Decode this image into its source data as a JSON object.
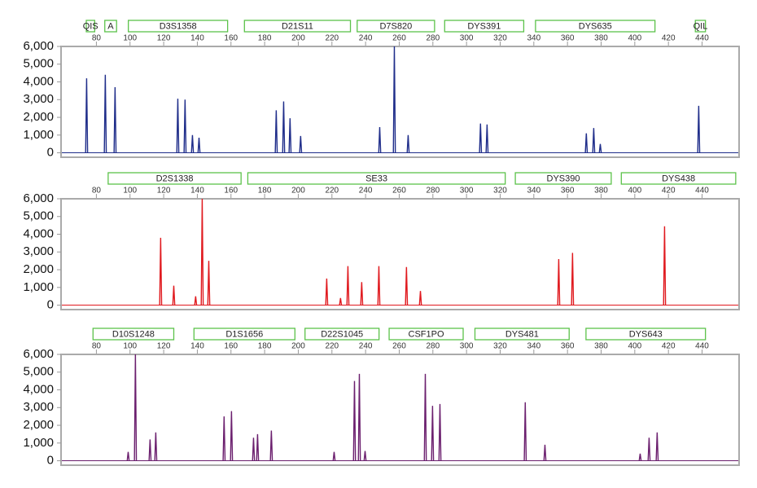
{
  "chart_data": [
    {
      "type": "peaks",
      "color": "#1f2d8a",
      "markers": [
        {
          "name": "QIS",
          "range": [
            74,
            79
          ]
        },
        {
          "name": "A",
          "range": [
            85,
            92
          ]
        },
        {
          "name": "D3S1358",
          "range": [
            99,
            158
          ]
        },
        {
          "name": "D21S11",
          "range": [
            168,
            231
          ]
        },
        {
          "name": "D7S820",
          "range": [
            235,
            281
          ]
        },
        {
          "name": "DYS391",
          "range": [
            287,
            334
          ]
        },
        {
          "name": "DYS635",
          "range": [
            341,
            412
          ]
        },
        {
          "name": "QIL",
          "range": [
            436,
            442
          ]
        }
      ],
      "x": [
        74.2,
        85.3,
        91.1,
        128.4,
        132.7,
        137.1,
        141.0,
        186.9,
        191.3,
        195.1,
        201.4,
        248.4,
        257.1,
        265.3,
        308.3,
        312.2,
        371.2,
        375.6,
        379.5,
        438.0
      ],
      "values": [
        4200,
        4400,
        3700,
        3050,
        3000,
        1000,
        850,
        2400,
        2900,
        1950,
        950,
        1450,
        6000,
        1000,
        1650,
        1600,
        1100,
        1400,
        500,
        2650
      ],
      "xlim": [
        59,
        462
      ],
      "xticks": [
        80,
        100,
        120,
        140,
        160,
        180,
        200,
        220,
        240,
        260,
        280,
        300,
        320,
        340,
        360,
        380,
        400,
        420,
        440
      ],
      "ylim": [
        -250,
        6000
      ],
      "yticks": [
        0,
        {
          "value": 1000,
          "label": "1,000"
        },
        {
          "value": 2000,
          "label": "2,000"
        },
        {
          "value": 3000,
          "label": "3,000"
        },
        {
          "value": 4000,
          "label": "4,000"
        },
        {
          "value": 5000,
          "label": "5,000"
        },
        {
          "value": 6000,
          "label": "6,000"
        }
      ]
    },
    {
      "type": "peaks",
      "color": "#e0191e",
      "markers": [
        {
          "name": "D2S1338",
          "range": [
            87,
            166
          ]
        },
        {
          "name": "SE33",
          "range": [
            170,
            323
          ]
        },
        {
          "name": "DYS390",
          "range": [
            329,
            386
          ]
        },
        {
          "name": "DYS438",
          "range": [
            392,
            460
          ]
        }
      ],
      "x": [
        118.2,
        126.0,
        139.0,
        142.9,
        146.8,
        216.9,
        225.1,
        229.5,
        237.7,
        247.9,
        264.3,
        272.6,
        354.8,
        363.0,
        417.7
      ],
      "values": [
        3800,
        1100,
        500,
        6000,
        2500,
        1500,
        400,
        2200,
        1300,
        2200,
        2150,
        800,
        2600,
        2950,
        4450
      ],
      "xlim": [
        59,
        462
      ],
      "xticks": [
        80,
        100,
        120,
        140,
        160,
        180,
        200,
        220,
        240,
        260,
        280,
        300,
        320,
        340,
        360,
        380,
        400,
        420,
        440
      ],
      "ylim": [
        -250,
        6000
      ],
      "yticks": [
        0,
        {
          "value": 1000,
          "label": "1,000"
        },
        {
          "value": 2000,
          "label": "2,000"
        },
        {
          "value": 3000,
          "label": "3,000"
        },
        {
          "value": 4000,
          "label": "4,000"
        },
        {
          "value": 5000,
          "label": "5,000"
        },
        {
          "value": 6000,
          "label": "6,000"
        }
      ]
    },
    {
      "type": "peaks",
      "color": "#6b1f6e",
      "markers": [
        {
          "name": "D10S1248",
          "range": [
            78,
            126
          ]
        },
        {
          "name": "D1S1656",
          "range": [
            138,
            198
          ]
        },
        {
          "name": "D22S1045",
          "range": [
            204,
            248
          ]
        },
        {
          "name": "CSF1PO",
          "range": [
            254,
            298
          ]
        },
        {
          "name": "DYS481",
          "range": [
            305,
            361
          ]
        },
        {
          "name": "DYS643",
          "range": [
            371,
            442
          ]
        }
      ],
      "x": [
        98.9,
        103.2,
        111.9,
        115.3,
        155.9,
        160.3,
        173.4,
        175.8,
        184.0,
        221.3,
        233.4,
        236.3,
        239.7,
        275.5,
        279.8,
        284.2,
        334.9,
        346.6,
        403.2,
        408.5,
        413.3
      ],
      "values": [
        500,
        6000,
        1200,
        1600,
        2500,
        2800,
        1300,
        1500,
        1700,
        500,
        4500,
        4900,
        550,
        4900,
        3100,
        3200,
        3300,
        900,
        400,
        1300,
        1600
      ],
      "xlim": [
        59,
        462
      ],
      "xticks": [
        80,
        100,
        120,
        140,
        160,
        180,
        200,
        220,
        240,
        260,
        280,
        300,
        320,
        340,
        360,
        380,
        400,
        420,
        440
      ],
      "ylim": [
        -250,
        6000
      ],
      "yticks": [
        0,
        {
          "value": 1000,
          "label": "1,000"
        },
        {
          "value": 2000,
          "label": "2,000"
        },
        {
          "value": 3000,
          "label": "3,000"
        },
        {
          "value": 4000,
          "label": "4,000"
        },
        {
          "value": 5000,
          "label": "5,000"
        },
        {
          "value": 6000,
          "label": "6,000"
        }
      ]
    }
  ]
}
